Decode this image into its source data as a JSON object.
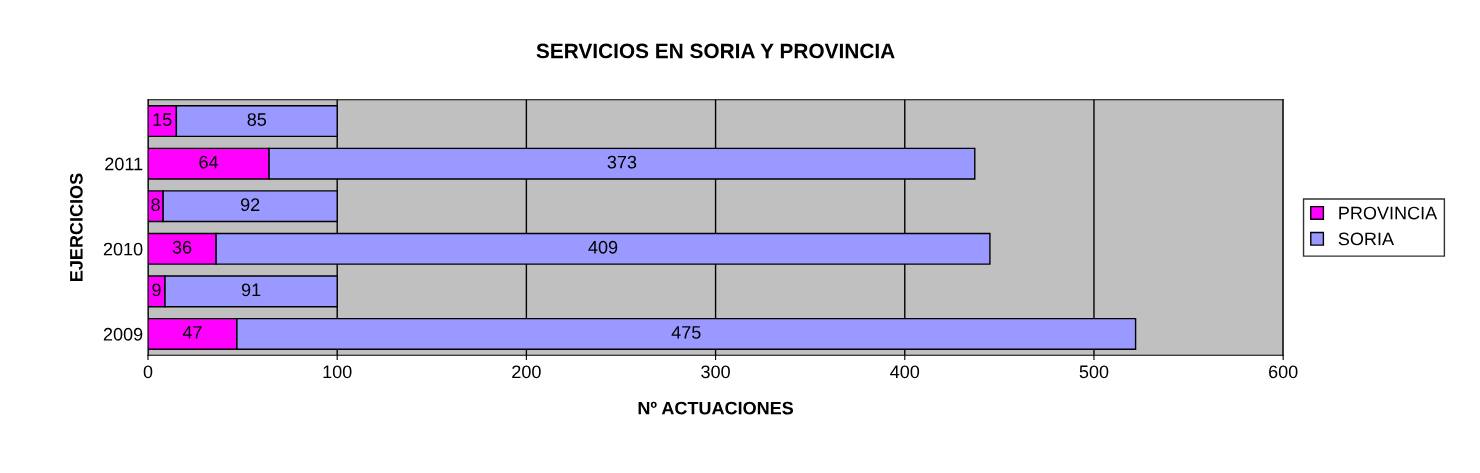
{
  "chart_data": {
    "type": "bar",
    "orientation": "horizontal",
    "stacked": true,
    "title": "SERVICIOS EN SORIA Y PROVINCIA",
    "xlabel": "Nº ACTUACIONES",
    "ylabel": "EJERCICIOS",
    "categories": [
      null,
      "2011",
      null,
      "2010",
      null,
      "2009"
    ],
    "series": [
      {
        "name": "PROVINCIA",
        "color": "#ff00ff",
        "values": [
          15,
          64,
          8,
          36,
          9,
          47
        ]
      },
      {
        "name": "SORIA",
        "color": "#9999ff",
        "values": [
          85,
          373,
          92,
          409,
          91,
          475
        ]
      }
    ],
    "xlim": [
      0,
      600
    ],
    "xticks": [
      0,
      100,
      200,
      300,
      400,
      500,
      600
    ],
    "grid": "x",
    "legend": "right",
    "data_labels": true
  }
}
